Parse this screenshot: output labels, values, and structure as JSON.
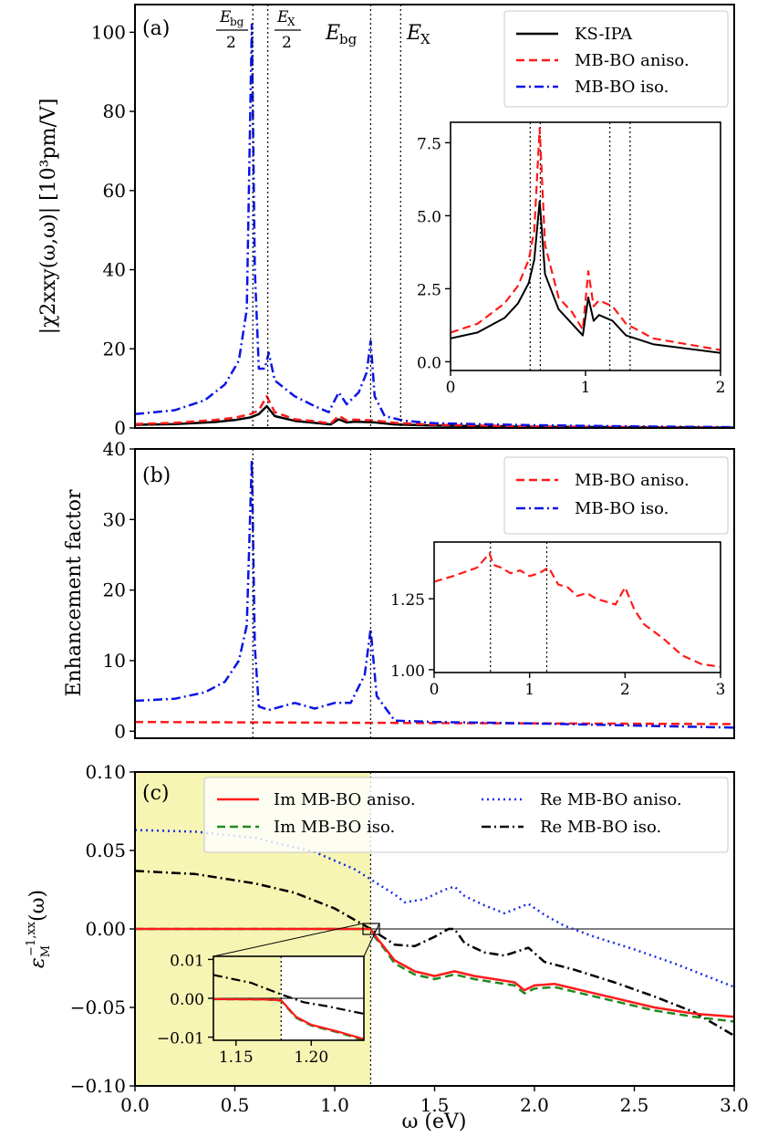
{
  "colors": {
    "ks": "#000000",
    "mb_aniso": "#ff1a1a",
    "mb_iso": "#0a14e6",
    "im_aniso": "#ff1a1a",
    "im_iso": "#1f8a1f",
    "re_aniso": "#1a2ee6",
    "re_iso": "#000000",
    "gap_shade": "#f6f5b4"
  },
  "chart_data": [
    {
      "panel": "(a)",
      "type": "line",
      "ylabel": "|χ2xxy(ω,ω)| [10³pm/V]",
      "xlim": [
        0,
        3.0
      ],
      "ylim": [
        0,
        107
      ],
      "yticks": [
        "0",
        "20",
        "40",
        "60",
        "80",
        "100"
      ],
      "markers": [
        {
          "x": 0.59,
          "label": "Ebg/2"
        },
        {
          "x": 0.665,
          "label": "EX/2"
        },
        {
          "x": 1.18,
          "label": "Ebg"
        },
        {
          "x": 1.33,
          "label": "EX"
        }
      ],
      "legend": [
        "KS-IPA",
        "MB-BO aniso.",
        "MB-BO iso."
      ],
      "series": [
        {
          "name": "KS-IPA",
          "x": [
            0,
            0.2,
            0.4,
            0.5,
            0.58,
            0.62,
            0.66,
            0.7,
            0.8,
            0.9,
            0.98,
            1.02,
            1.06,
            1.1,
            1.2,
            1.3,
            1.5,
            2.0,
            2.5,
            3.0
          ],
          "y": [
            0.8,
            1.0,
            1.5,
            2.0,
            2.7,
            3.5,
            5.5,
            3.0,
            1.8,
            1.3,
            0.9,
            2.2,
            1.4,
            1.6,
            1.4,
            0.9,
            0.6,
            0.3,
            0.2,
            0.1
          ]
        },
        {
          "name": "MB-BO aniso.",
          "x": [
            0,
            0.2,
            0.4,
            0.5,
            0.58,
            0.62,
            0.66,
            0.7,
            0.8,
            0.9,
            0.98,
            1.02,
            1.06,
            1.1,
            1.2,
            1.3,
            1.5,
            2.0,
            2.5,
            3.0
          ],
          "y": [
            1.0,
            1.3,
            2.0,
            2.6,
            3.5,
            4.5,
            8.0,
            4.0,
            2.2,
            1.7,
            1.1,
            3.1,
            1.9,
            2.1,
            1.9,
            1.3,
            0.8,
            0.4,
            0.2,
            0.1
          ]
        },
        {
          "name": "MB-BO iso.",
          "x": [
            0,
            0.2,
            0.35,
            0.45,
            0.52,
            0.56,
            0.585,
            0.6,
            0.62,
            0.65,
            0.67,
            0.7,
            0.8,
            0.9,
            0.97,
            1.02,
            1.06,
            1.12,
            1.16,
            1.18,
            1.2,
            1.25,
            1.35,
            1.5,
            2.0,
            2.5,
            3.0
          ],
          "y": [
            3.5,
            4.5,
            7.0,
            11.0,
            17.0,
            30.0,
            102.0,
            40.0,
            15.0,
            15.0,
            19.0,
            12.0,
            8.0,
            5.5,
            4.0,
            9.0,
            6.0,
            9.0,
            14.0,
            22.0,
            8.0,
            3.0,
            1.8,
            1.2,
            0.7,
            0.4,
            0.2
          ]
        }
      ],
      "inset": {
        "xlim": [
          0,
          2
        ],
        "ylim": [
          -0.3,
          8.2
        ],
        "xticks": [
          "0",
          "1",
          "2"
        ],
        "yticks": [
          "0.0",
          "2.5",
          "5.0",
          "7.5"
        ],
        "markers": [
          0.59,
          0.665,
          1.18,
          1.33
        ]
      }
    },
    {
      "panel": "(b)",
      "type": "line",
      "ylabel": "Enhancement factor",
      "xlim": [
        0,
        3.0
      ],
      "ylim": [
        -1,
        40
      ],
      "yticks": [
        "0",
        "10",
        "20",
        "30",
        "40"
      ],
      "markers": [
        0.59,
        1.18
      ],
      "legend": [
        "MB-BO aniso.",
        "MB-BO iso."
      ],
      "series": [
        {
          "name": "MB-BO aniso.",
          "x": [
            0,
            3.0
          ],
          "y": [
            1.3,
            1.0
          ]
        },
        {
          "name": "MB-BO iso.",
          "x": [
            0,
            0.2,
            0.35,
            0.45,
            0.52,
            0.56,
            0.585,
            0.6,
            0.62,
            0.67,
            0.8,
            0.9,
            1.0,
            1.08,
            1.15,
            1.18,
            1.21,
            1.3,
            1.5,
            2.0,
            2.5,
            3.0
          ],
          "y": [
            4.3,
            4.6,
            5.5,
            7.0,
            10.0,
            15.0,
            38.5,
            12.0,
            3.5,
            3.0,
            4.0,
            3.2,
            4.0,
            4.0,
            8.0,
            14.5,
            5.0,
            1.5,
            1.3,
            1.1,
            0.8,
            0.5
          ]
        }
      ],
      "inset": {
        "xlim": [
          0,
          3
        ],
        "ylim": [
          0.99,
          1.45
        ],
        "xticks": [
          "0",
          "1",
          "2",
          "3"
        ],
        "yticks": [
          "1.00",
          "1.25"
        ],
        "markers": [
          0.59,
          1.18
        ],
        "series": {
          "name": "MB-BO aniso.",
          "x": [
            0,
            0.2,
            0.45,
            0.58,
            0.62,
            0.7,
            0.8,
            0.9,
            1.0,
            1.1,
            1.2,
            1.3,
            1.4,
            1.5,
            1.6,
            1.7,
            1.8,
            1.9,
            2.0,
            2.1,
            2.2,
            2.4,
            2.6,
            2.8,
            3.0
          ],
          "y": [
            1.31,
            1.33,
            1.36,
            1.41,
            1.37,
            1.36,
            1.34,
            1.35,
            1.33,
            1.34,
            1.36,
            1.3,
            1.29,
            1.26,
            1.27,
            1.25,
            1.24,
            1.23,
            1.29,
            1.21,
            1.16,
            1.11,
            1.05,
            1.02,
            1.01
          ]
        }
      }
    },
    {
      "panel": "(c)",
      "type": "line",
      "ylabel": "ε_M^{-1,xx}(ω)",
      "xlabel": "ω (eV)",
      "xlim": [
        0,
        3.0
      ],
      "ylim": [
        -0.1,
        0.1
      ],
      "xticks": [
        "0.0",
        "0.5",
        "1.0",
        "1.5",
        "2.0",
        "2.5",
        "3.0"
      ],
      "yticks": [
        "−0.10",
        "−0.05",
        "0.00",
        "0.05",
        "0.10"
      ],
      "shaded_region": [
        0,
        1.18
      ],
      "legend": [
        "Im MB-BO aniso.",
        "Im MB-BO iso.",
        "Re MB-BO aniso.",
        "Re MB-BO iso."
      ],
      "series": [
        {
          "name": "Im MB-BO aniso.",
          "x": [
            0,
            1.1,
            1.18,
            1.2,
            1.25,
            1.3,
            1.4,
            1.5,
            1.6,
            1.7,
            1.8,
            1.9,
            1.95,
            2.0,
            2.1,
            2.2,
            2.4,
            2.6,
            2.8,
            3.0
          ],
          "y": [
            0,
            0,
            0,
            -0.004,
            -0.012,
            -0.02,
            -0.027,
            -0.03,
            -0.027,
            -0.03,
            -0.032,
            -0.034,
            -0.039,
            -0.036,
            -0.035,
            -0.038,
            -0.044,
            -0.05,
            -0.054,
            -0.056
          ]
        },
        {
          "name": "Im MB-BO iso.",
          "x": [
            0,
            1.1,
            1.18,
            1.2,
            1.25,
            1.3,
            1.4,
            1.5,
            1.6,
            1.7,
            1.8,
            1.9,
            1.95,
            2.0,
            2.1,
            2.2,
            2.4,
            2.6,
            2.8,
            3.0
          ],
          "y": [
            0,
            0,
            0,
            -0.005,
            -0.013,
            -0.022,
            -0.029,
            -0.032,
            -0.029,
            -0.032,
            -0.034,
            -0.036,
            -0.041,
            -0.038,
            -0.037,
            -0.04,
            -0.046,
            -0.052,
            -0.056,
            -0.059
          ]
        },
        {
          "name": "Re MB-BO aniso.",
          "x": [
            0,
            0.3,
            0.6,
            0.9,
            1.1,
            1.2,
            1.3,
            1.35,
            1.45,
            1.55,
            1.6,
            1.65,
            1.75,
            1.85,
            1.97,
            2.05,
            2.15,
            2.3,
            2.5,
            2.7,
            3.0
          ],
          "y": [
            0.063,
            0.062,
            0.058,
            0.049,
            0.038,
            0.03,
            0.022,
            0.017,
            0.019,
            0.025,
            0.027,
            0.021,
            0.015,
            0.01,
            0.016,
            0.009,
            0.002,
            -0.005,
            -0.013,
            -0.022,
            -0.037
          ]
        },
        {
          "name": "Re MB-BO iso.",
          "x": [
            0,
            0.3,
            0.6,
            0.8,
            1.0,
            1.18,
            1.3,
            1.4,
            1.5,
            1.57,
            1.6,
            1.65,
            1.75,
            1.85,
            1.97,
            2.05,
            2.2,
            2.4,
            2.6,
            2.8,
            3.0
          ],
          "y": [
            0.037,
            0.035,
            0.029,
            0.023,
            0.013,
            0.0,
            -0.01,
            -0.011,
            -0.005,
            0.0,
            0.0,
            -0.009,
            -0.015,
            -0.017,
            -0.012,
            -0.021,
            -0.026,
            -0.034,
            -0.043,
            -0.053,
            -0.068
          ]
        }
      ],
      "inset": {
        "xlim": [
          1.135,
          1.235
        ],
        "ylim": [
          -0.0108,
          0.0108
        ],
        "xticks": [
          "1.15",
          "1.20"
        ],
        "yticks": [
          "−0.01",
          "0.00",
          "0.01"
        ],
        "marker": 1.18
      }
    }
  ]
}
